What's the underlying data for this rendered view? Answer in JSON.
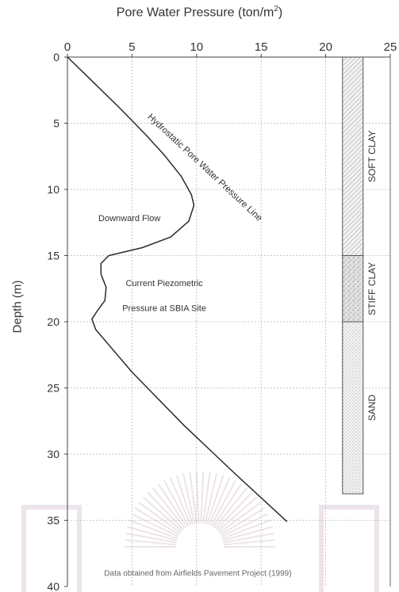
{
  "chart_data": {
    "type": "line",
    "title": "Pore Water Pressure (ton/m²)",
    "title_main": "Pore Water Pressure (ton/m",
    "title_sup": "2",
    "title_end": ")",
    "xlabel": "Pore Water Pressure (ton/m²)",
    "ylabel": "Depth (m)",
    "xlim": [
      0,
      25
    ],
    "ylim": [
      0,
      40
    ],
    "x_axis_position": "top",
    "y_inverted": true,
    "x_ticks": [
      0,
      5,
      10,
      15,
      20,
      25
    ],
    "y_ticks": [
      0,
      5,
      10,
      15,
      20,
      25,
      30,
      35,
      40
    ],
    "grid": true,
    "series": [
      {
        "name": "Current Piezometric Pressure at SBIA Site",
        "x": [
          0,
          2,
          4,
          6,
          7.5,
          8.8,
          9.6,
          9.8,
          9.4,
          8.0,
          5.8,
          3.2,
          2.6,
          2.6,
          3.0,
          2.9,
          2.3,
          1.9,
          2.2,
          5.0,
          9.0,
          13.0,
          17.0
        ],
        "y": [
          0,
          1.9,
          3.8,
          5.8,
          7.4,
          9.0,
          10.4,
          11.2,
          12.4,
          13.6,
          14.4,
          15.0,
          15.6,
          16.4,
          17.4,
          18.4,
          19.2,
          19.8,
          20.6,
          23.8,
          27.8,
          31.5,
          35.1
        ]
      }
    ],
    "annotations": [
      {
        "text": "Hydrostatic Pore Water Pressure Line",
        "x": 10.5,
        "y": 8.5
      },
      {
        "text": "Downward Flow",
        "x": 4.8,
        "y": 12.4
      },
      {
        "text": "Current Piezometric",
        "x": 7.5,
        "y": 17.3
      },
      {
        "text": "Pressure at SBIA Site",
        "x": 7.5,
        "y": 19.2
      },
      {
        "text": "Data obtained from Airfields Pavement Project (1999)",
        "x": 10.1,
        "y": 39.2
      }
    ],
    "soil_column": {
      "x_range": [
        21.3,
        22.9
      ],
      "layers": [
        {
          "name": "SOFT CLAY",
          "top": 0,
          "bottom": 15,
          "pattern": "hatch"
        },
        {
          "name": "STIFF CLAY",
          "top": 15,
          "bottom": 20,
          "pattern": "mottled"
        },
        {
          "name": "SAND",
          "top": 20,
          "bottom": 33,
          "pattern": "dots"
        }
      ]
    }
  },
  "colors": {
    "line": "#2a2a2a",
    "grid": "#b8b8b8",
    "axis": "#444444",
    "text": "#333333",
    "watermark": "#ece4ea"
  }
}
